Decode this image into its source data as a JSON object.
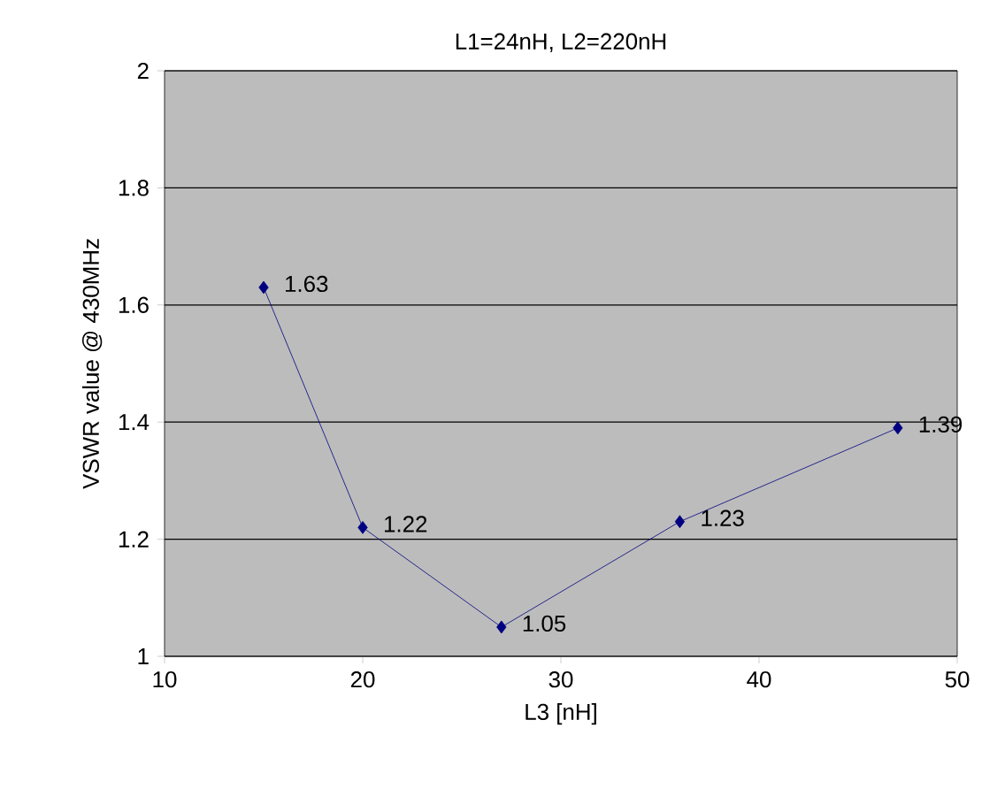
{
  "chart_data": {
    "type": "line",
    "title": "L1=24nH, L2=220nH",
    "xlabel": "L3 [nH]",
    "ylabel": "VSWR value @ 430MHz",
    "x": [
      15,
      20,
      27,
      36,
      47
    ],
    "series": [
      {
        "color": "#000080",
        "values": [
          1.63,
          1.22,
          1.05,
          1.23,
          1.39
        ]
      }
    ],
    "xlim": [
      10,
      50
    ],
    "xticks": [
      10,
      20,
      30,
      40,
      50
    ],
    "ylim": [
      1,
      2
    ],
    "yticks": [
      1,
      1.2,
      1.4,
      1.6,
      1.8,
      2
    ],
    "grid": "y",
    "marker": "diamond",
    "line_style": "solid",
    "data_labels": true
  }
}
